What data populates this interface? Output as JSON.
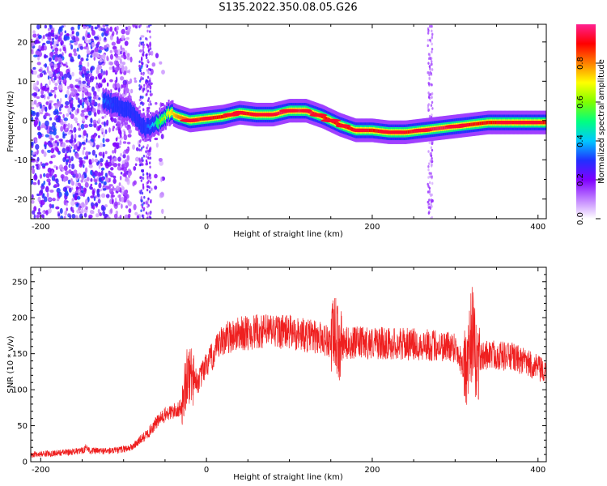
{
  "title": "S135.2022.350.08.05.G26",
  "chart_data": [
    {
      "type": "heatmap",
      "xlabel": "Height of straight line (km)",
      "ylabel": "Frequency (Hz)",
      "xlim": [
        -212,
        410
      ],
      "ylim": [
        -25,
        24.5
      ],
      "xticks": [
        -200,
        0,
        200,
        400
      ],
      "yticks": [
        -20,
        -10,
        0,
        10,
        20
      ],
      "colorbar": {
        "label": "Normalized spectral amplitude",
        "range": [
          0.0,
          1.0
        ],
        "ticks": [
          "0.0",
          "0.2",
          "0.4",
          "0.6",
          "0.8"
        ],
        "tick_values": [
          0.0,
          0.2,
          0.4,
          0.6,
          0.8
        ],
        "colors": [
          "#ffffff",
          "#c080ff",
          "#8000ff",
          "#2030ff",
          "#00c8ff",
          "#00ff80",
          "#80ff00",
          "#ffff00",
          "#ff8000",
          "#ff0000",
          "#ff2090"
        ]
      },
      "ridge": {
        "x": [
          -125,
          -110,
          -95,
          -85,
          -75,
          -65,
          -55,
          -45,
          -35,
          -20,
          0,
          20,
          40,
          60,
          80,
          100,
          120,
          140,
          160,
          180,
          200,
          220,
          240,
          260,
          280,
          300,
          320,
          340,
          360,
          380,
          400
        ],
        "y": [
          5,
          4,
          3,
          1,
          -2,
          -1,
          0,
          2,
          1,
          0,
          0.5,
          1,
          2,
          1.5,
          1.5,
          2.5,
          2.5,
          1,
          -1,
          -2.5,
          -2.5,
          -3,
          -3,
          -2.5,
          -2,
          -1.5,
          -1,
          -0.5,
          -0.5,
          -0.5,
          -0.5
        ],
        "amplitude": [
          0.35,
          0.3,
          0.3,
          0.28,
          0.3,
          0.4,
          0.6,
          0.7,
          0.8,
          0.85,
          0.9,
          0.9,
          0.9,
          0.9,
          0.95,
          0.95,
          0.95,
          0.9,
          0.9,
          0.9,
          0.9,
          0.9,
          0.9,
          0.95,
          0.95,
          0.95,
          0.9,
          0.9,
          0.9,
          0.9,
          0.9
        ]
      }
    },
    {
      "type": "line",
      "xlabel": "Height of straight line (km)",
      "ylabel": "SNR (10 * v/v)",
      "xlim": [
        -212,
        410
      ],
      "ylim": [
        0,
        270
      ],
      "xticks": [
        -200,
        0,
        200,
        400
      ],
      "yticks": [
        0,
        50,
        100,
        150,
        200,
        250
      ],
      "color": "#ef2020",
      "envelope": {
        "x": [
          -212,
          -180,
          -150,
          -145,
          -140,
          -110,
          -90,
          -80,
          -70,
          -60,
          -50,
          -40,
          -30,
          -25,
          -20,
          -10,
          0,
          10,
          20,
          30,
          40,
          60,
          80,
          100,
          120,
          140,
          150,
          155,
          160,
          170,
          200,
          250,
          300,
          315,
          320,
          325,
          340,
          370,
          400,
          410
        ],
        "y": [
          10,
          12,
          15,
          20,
          15,
          15,
          20,
          30,
          40,
          55,
          65,
          70,
          75,
          110,
          125,
          110,
          135,
          150,
          170,
          175,
          178,
          180,
          182,
          180,
          175,
          172,
          165,
          180,
          160,
          165,
          165,
          163,
          160,
          120,
          185,
          140,
          150,
          145,
          130,
          120
        ]
      }
    }
  ]
}
